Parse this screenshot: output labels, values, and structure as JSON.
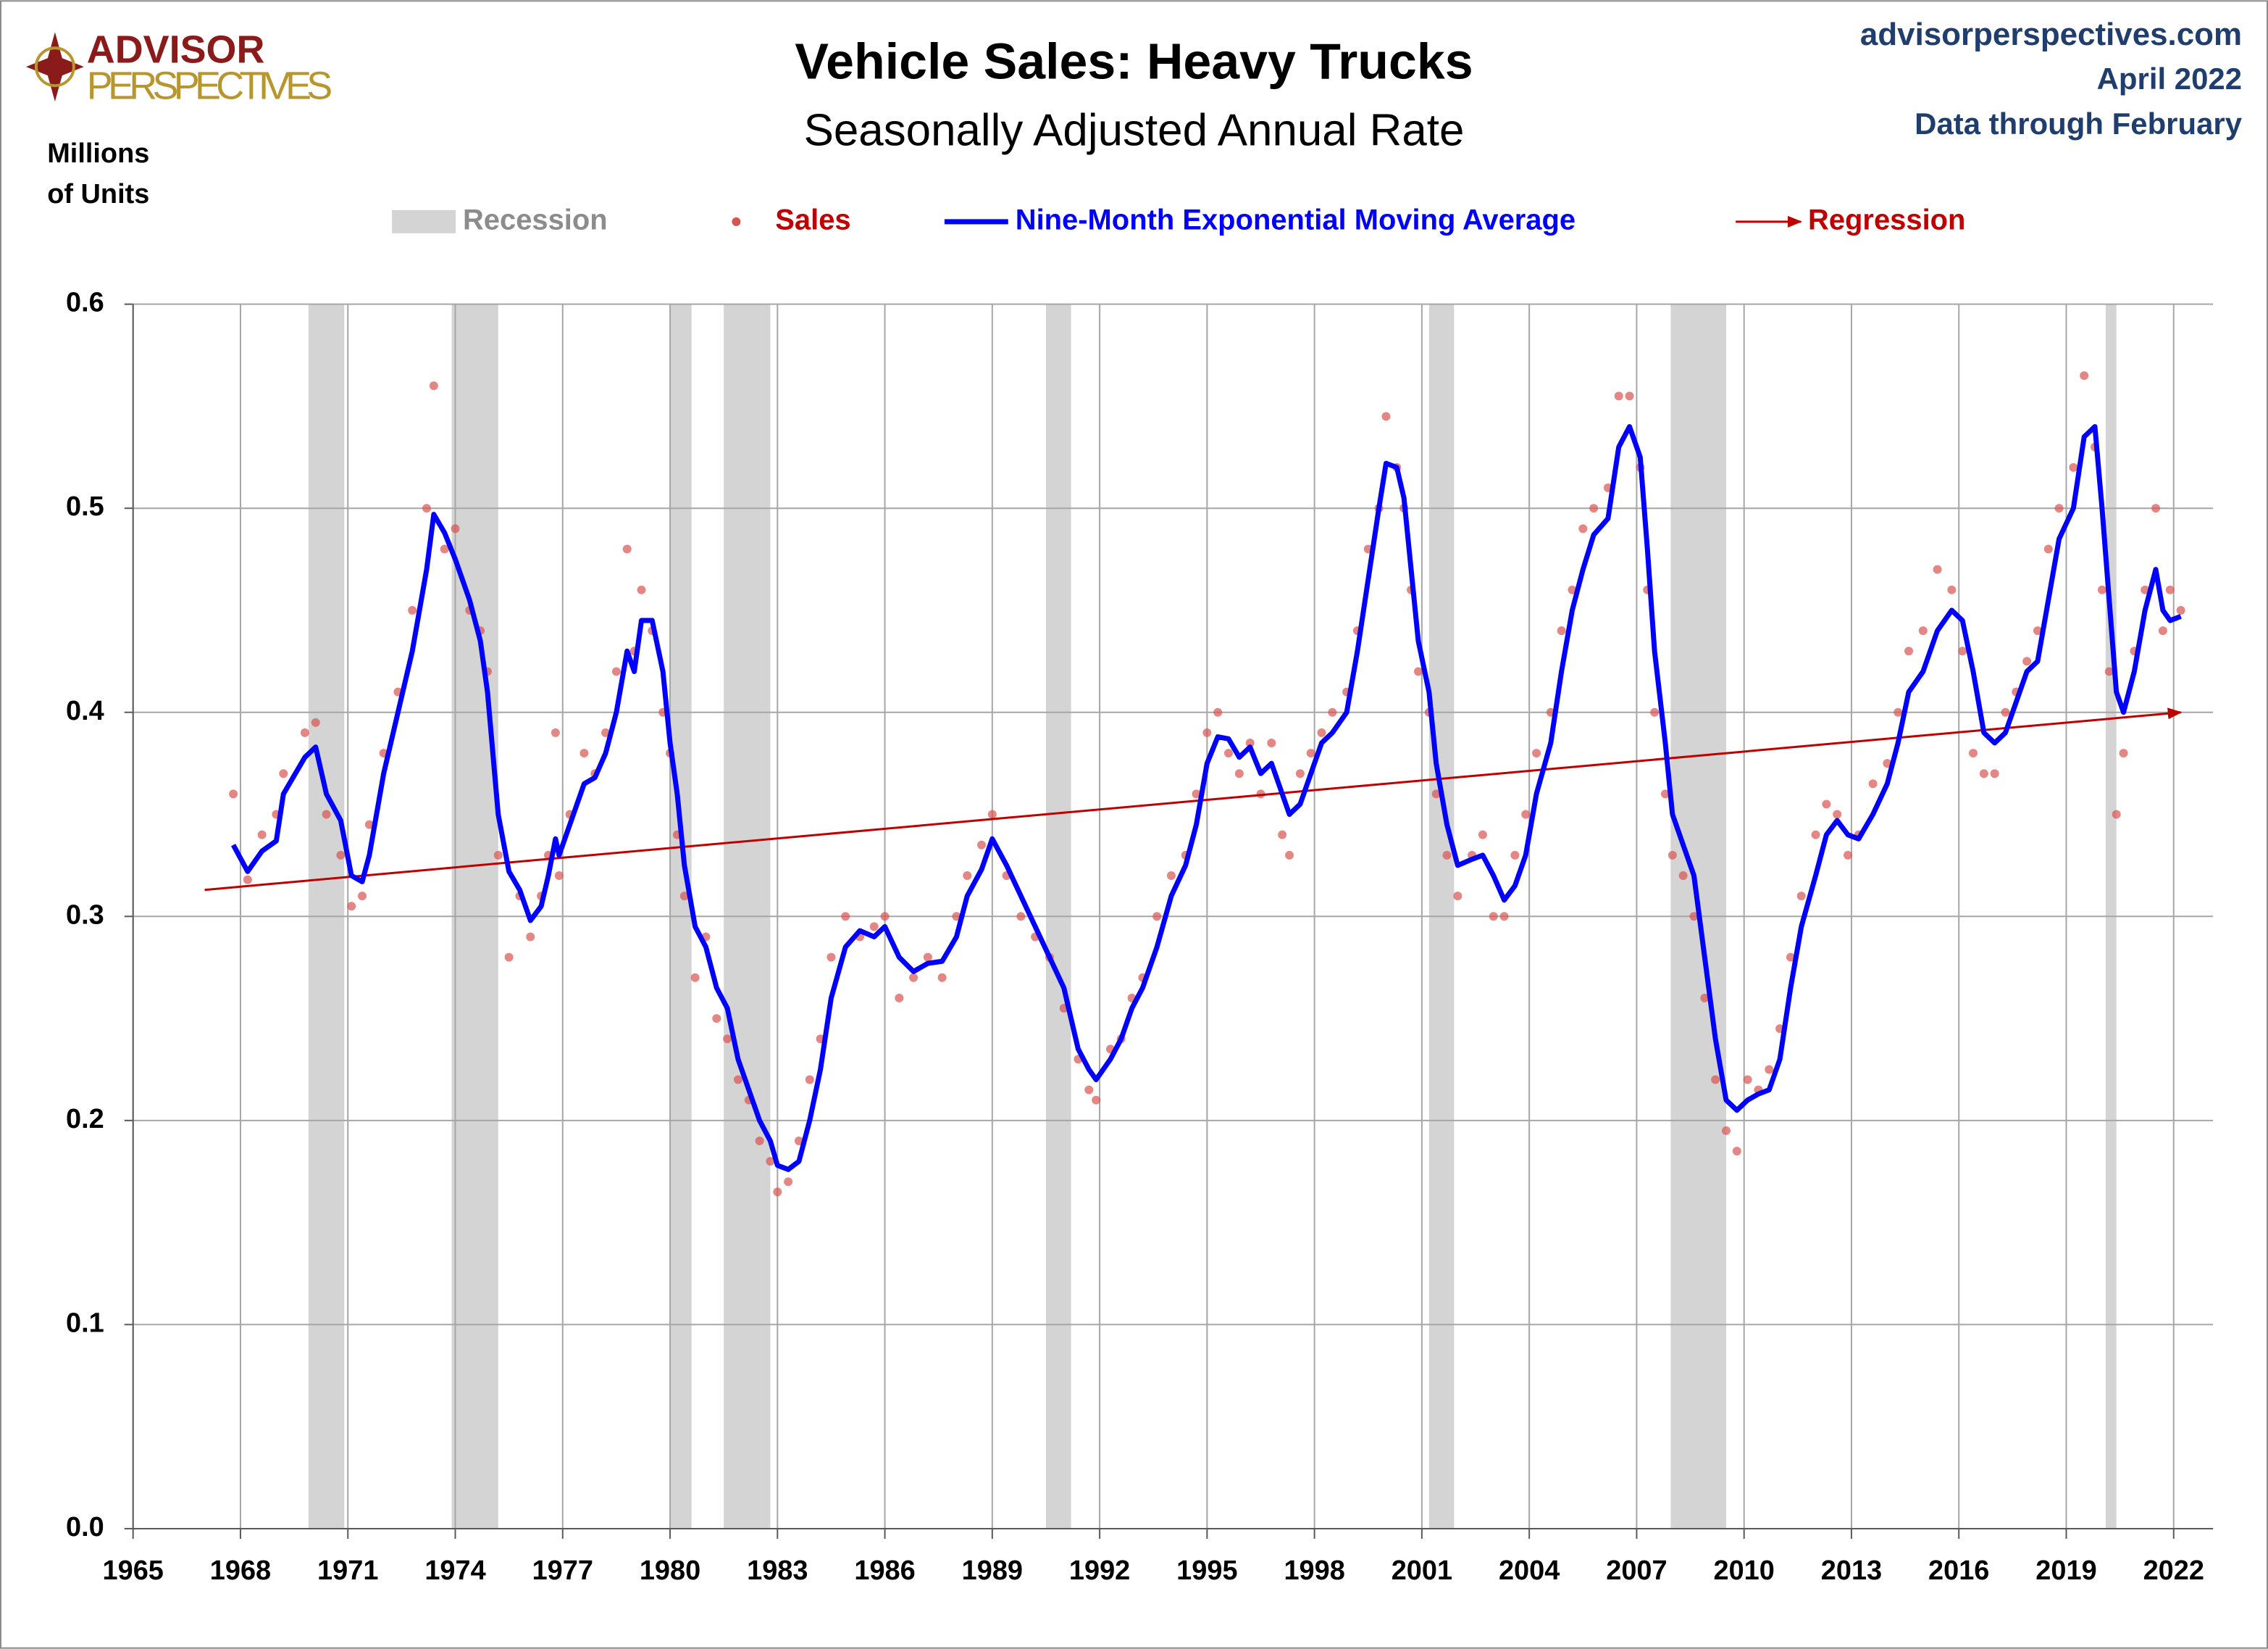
{
  "header": {
    "logo_top": "ADVISOR",
    "logo_bottom": "PERSPECTIVES",
    "site": "advisorperspectives.com",
    "date": "April 2022",
    "note": "Data through February"
  },
  "chart_data": {
    "type": "line",
    "title": "Vehicle Sales: Heavy Trucks",
    "subtitle": "Seasonally Adjusted Annual Rate",
    "ylabel": [
      "Millions",
      "of Units"
    ],
    "xlim": [
      1965,
      2023.1
    ],
    "ylim": [
      0,
      0.6
    ],
    "xticks": [
      1965,
      1968,
      1971,
      1974,
      1977,
      1980,
      1983,
      1986,
      1989,
      1992,
      1995,
      1998,
      2001,
      2004,
      2007,
      2010,
      2013,
      2016,
      2019,
      2022
    ],
    "yticks": [
      {
        "value": 0,
        "label": "0.0"
      },
      0.1,
      0.2,
      0.3,
      0.4,
      0.5,
      0.6
    ],
    "grid": true,
    "recession": {
      "name": "Recession",
      "color": "#d4d4d4",
      "periods": [
        [
          1969.9,
          1970.9
        ],
        [
          1973.9,
          1975.2
        ],
        [
          1980.0,
          1980.6
        ],
        [
          1981.5,
          1982.8
        ],
        [
          1990.5,
          1991.2
        ],
        [
          2001.2,
          2001.9
        ],
        [
          2007.95,
          2009.5
        ],
        [
          2020.1,
          2020.4
        ]
      ]
    },
    "regression": {
      "name": "Regression",
      "color": "#c00000",
      "x": [
        1967,
        2022.2
      ],
      "values": [
        0.313,
        0.4
      ]
    },
    "x": [
      1967.8,
      1968.2,
      1968.6,
      1969.0,
      1969.2,
      1969.8,
      1970.1,
      1970.4,
      1970.8,
      1971.1,
      1971.4,
      1971.6,
      1972.0,
      1972.4,
      1972.8,
      1973.2,
      1973.4,
      1973.7,
      1974.0,
      1974.4,
      1974.7,
      1974.9,
      1975.2,
      1975.5,
      1975.8,
      1976.1,
      1976.4,
      1976.6,
      1976.8,
      1976.9,
      1977.2,
      1977.6,
      1977.9,
      1978.2,
      1978.5,
      1978.8,
      1979.0,
      1979.2,
      1979.5,
      1979.8,
      1980.0,
      1980.2,
      1980.4,
      1980.7,
      1981.0,
      1981.3,
      1981.6,
      1981.9,
      1982.2,
      1982.5,
      1982.8,
      1983.0,
      1983.3,
      1983.6,
      1983.9,
      1984.2,
      1984.5,
      1984.9,
      1985.3,
      1985.7,
      1986.0,
      1986.4,
      1986.8,
      1987.2,
      1987.6,
      1988.0,
      1988.3,
      1988.7,
      1989.0,
      1989.4,
      1989.8,
      1990.2,
      1990.6,
      1991.0,
      1991.4,
      1991.7,
      1991.9,
      1992.3,
      1992.6,
      1992.9,
      1993.2,
      1993.6,
      1994.0,
      1994.4,
      1994.7,
      1995.0,
      1995.3,
      1995.6,
      1995.9,
      1996.2,
      1996.5,
      1996.8,
      1997.1,
      1997.3,
      1997.6,
      1997.9,
      1998.2,
      1998.5,
      1998.9,
      1999.2,
      1999.5,
      1999.8,
      2000.0,
      2000.3,
      2000.5,
      2000.7,
      2000.9,
      2001.2,
      2001.4,
      2001.7,
      2002.0,
      2002.4,
      2002.7,
      2003.0,
      2003.3,
      2003.6,
      2003.9,
      2004.2,
      2004.6,
      2004.9,
      2005.2,
      2005.5,
      2005.8,
      2006.2,
      2006.5,
      2006.8,
      2007.1,
      2007.3,
      2007.5,
      2007.8,
      2008.0,
      2008.3,
      2008.6,
      2008.9,
      2009.2,
      2009.5,
      2009.8,
      2010.1,
      2010.4,
      2010.7,
      2011.0,
      2011.3,
      2011.6,
      2012.0,
      2012.3,
      2012.6,
      2012.9,
      2013.2,
      2013.6,
      2014.0,
      2014.3,
      2014.6,
      2015.0,
      2015.4,
      2015.8,
      2016.1,
      2016.4,
      2016.7,
      2017.0,
      2017.3,
      2017.6,
      2017.9,
      2018.2,
      2018.5,
      2018.8,
      2019.2,
      2019.5,
      2019.8,
      2020.0,
      2020.2,
      2020.4,
      2020.6,
      2020.9,
      2021.2,
      2021.5,
      2021.7,
      2021.9,
      2022.2
    ],
    "series": [
      {
        "name": "Sales",
        "color": "#c00000",
        "dot_color": "#d9534f",
        "values": [
          0.36,
          0.318,
          0.34,
          0.35,
          0.37,
          0.39,
          0.395,
          0.35,
          0.33,
          0.305,
          0.31,
          0.345,
          0.38,
          0.41,
          0.45,
          0.5,
          0.56,
          0.48,
          0.49,
          0.45,
          0.44,
          0.42,
          0.33,
          0.28,
          0.31,
          0.29,
          0.31,
          0.33,
          0.39,
          0.32,
          0.35,
          0.38,
          0.37,
          0.39,
          0.42,
          0.48,
          0.43,
          0.46,
          0.44,
          0.4,
          0.38,
          0.34,
          0.31,
          0.27,
          0.29,
          0.25,
          0.24,
          0.22,
          0.21,
          0.19,
          0.18,
          0.165,
          0.17,
          0.19,
          0.22,
          0.24,
          0.28,
          0.3,
          0.29,
          0.295,
          0.3,
          0.26,
          0.27,
          0.28,
          0.27,
          0.3,
          0.32,
          0.335,
          0.35,
          0.32,
          0.3,
          0.29,
          0.28,
          0.255,
          0.23,
          0.215,
          0.21,
          0.235,
          0.24,
          0.26,
          0.27,
          0.3,
          0.32,
          0.33,
          0.36,
          0.39,
          0.4,
          0.38,
          0.37,
          0.385,
          0.36,
          0.385,
          0.34,
          0.33,
          0.37,
          0.38,
          0.39,
          0.4,
          0.41,
          0.44,
          0.48,
          0.5,
          0.545,
          0.52,
          0.5,
          0.46,
          0.42,
          0.4,
          0.36,
          0.33,
          0.31,
          0.33,
          0.34,
          0.3,
          0.3,
          0.33,
          0.35,
          0.38,
          0.4,
          0.44,
          0.46,
          0.49,
          0.5,
          0.51,
          0.555,
          0.555,
          0.52,
          0.46,
          0.4,
          0.36,
          0.33,
          0.32,
          0.3,
          0.26,
          0.22,
          0.195,
          0.185,
          0.22,
          0.215,
          0.225,
          0.245,
          0.28,
          0.31,
          0.34,
          0.355,
          0.35,
          0.33,
          0.34,
          0.365,
          0.375,
          0.4,
          0.43,
          0.44,
          0.47,
          0.46,
          0.43,
          0.38,
          0.37,
          0.37,
          0.4,
          0.41,
          0.425,
          0.44,
          0.48,
          0.5,
          0.52,
          0.565,
          0.53,
          0.46,
          0.42,
          0.35,
          0.38,
          0.43,
          0.46,
          0.5,
          0.44,
          0.46,
          0.45
        ]
      },
      {
        "name": "Nine-Month Exponential Moving Average",
        "color": "#0000ff",
        "values": [
          0.335,
          0.322,
          0.332,
          0.337,
          0.36,
          0.378,
          0.383,
          0.36,
          0.347,
          0.32,
          0.317,
          0.33,
          0.37,
          0.4,
          0.43,
          0.47,
          0.497,
          0.488,
          0.475,
          0.455,
          0.435,
          0.41,
          0.35,
          0.322,
          0.313,
          0.298,
          0.305,
          0.32,
          0.338,
          0.33,
          0.345,
          0.365,
          0.368,
          0.38,
          0.4,
          0.43,
          0.42,
          0.445,
          0.445,
          0.42,
          0.385,
          0.36,
          0.325,
          0.295,
          0.285,
          0.265,
          0.255,
          0.23,
          0.215,
          0.2,
          0.19,
          0.178,
          0.176,
          0.18,
          0.2,
          0.225,
          0.26,
          0.285,
          0.293,
          0.29,
          0.295,
          0.28,
          0.273,
          0.277,
          0.278,
          0.29,
          0.31,
          0.323,
          0.338,
          0.325,
          0.31,
          0.295,
          0.28,
          0.265,
          0.235,
          0.225,
          0.22,
          0.23,
          0.24,
          0.255,
          0.265,
          0.285,
          0.31,
          0.325,
          0.345,
          0.375,
          0.388,
          0.387,
          0.378,
          0.383,
          0.37,
          0.375,
          0.36,
          0.35,
          0.355,
          0.37,
          0.385,
          0.39,
          0.4,
          0.43,
          0.465,
          0.5,
          0.522,
          0.52,
          0.505,
          0.47,
          0.435,
          0.41,
          0.375,
          0.345,
          0.325,
          0.328,
          0.33,
          0.32,
          0.308,
          0.315,
          0.33,
          0.36,
          0.385,
          0.42,
          0.45,
          0.47,
          0.487,
          0.495,
          0.53,
          0.54,
          0.525,
          0.48,
          0.43,
          0.385,
          0.35,
          0.335,
          0.32,
          0.28,
          0.24,
          0.21,
          0.205,
          0.21,
          0.213,
          0.215,
          0.23,
          0.265,
          0.295,
          0.32,
          0.34,
          0.347,
          0.34,
          0.338,
          0.35,
          0.365,
          0.385,
          0.41,
          0.42,
          0.44,
          0.45,
          0.445,
          0.42,
          0.39,
          0.385,
          0.39,
          0.405,
          0.42,
          0.425,
          0.455,
          0.485,
          0.5,
          0.535,
          0.54,
          0.5,
          0.455,
          0.41,
          0.4,
          0.42,
          0.45,
          0.47,
          0.45,
          0.445,
          0.447
        ]
      }
    ]
  }
}
